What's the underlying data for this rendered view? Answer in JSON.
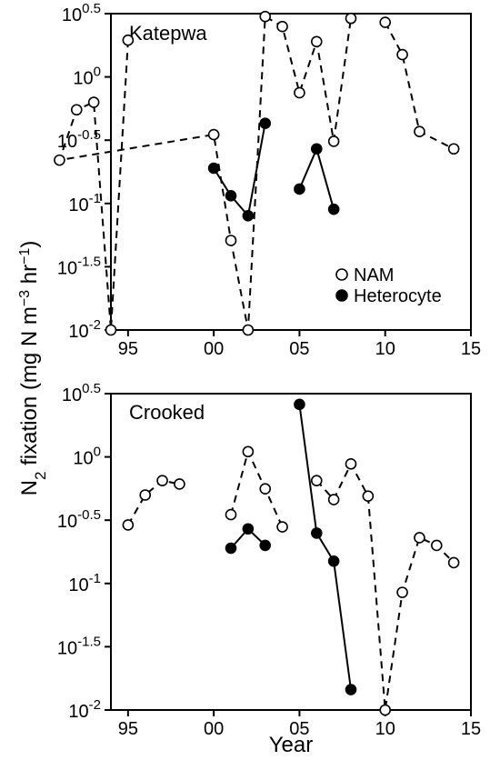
{
  "chart_data": [
    {
      "type": "line",
      "title": "Katepwa",
      "xlabel": "",
      "ylabel": "N2 fixation (mg N m-3 hr-1)",
      "y_scale": "log",
      "ylim": [
        0.01,
        3.1623
      ],
      "xlim": [
        1994,
        2015
      ],
      "x_tick_labels": [
        "95",
        "00",
        "05",
        "10",
        "15"
      ],
      "x_tick_values": [
        1995,
        2000,
        2005,
        2010,
        2015
      ],
      "y_tick_labels": [
        {
          "base": "10",
          "exp": "-2"
        },
        {
          "base": "10",
          "exp": "-1.5"
        },
        {
          "base": "10",
          "exp": "-1"
        },
        {
          "base": "10",
          "exp": "-0.5"
        },
        {
          "base": "10",
          "exp": "0"
        },
        {
          "base": "10",
          "exp": "0.5"
        }
      ],
      "y_tick_values": [
        0.01,
        0.03162,
        0.1,
        0.3162,
        1,
        3.1623
      ],
      "legend": {
        "position": "bottom-right",
        "entries": [
          "NAM",
          "Heterocyte"
        ]
      },
      "series": [
        {
          "name": "NAM",
          "marker": "open-circle",
          "line": "dashed",
          "segments": [
            [
              [
                1995,
                1.95
              ],
              [
                1994,
                0.01
              ],
              [
                1993,
                0.63
              ],
              [
                1992,
                0.55
              ],
              [
                1991,
                0.22
              ],
              [
                2000,
                0.35
              ],
              [
                2001,
                0.051
              ],
              [
                2002,
                0.01
              ],
              [
                2003,
                3.0
              ],
              [
                2004,
                2.5
              ],
              [
                2005,
                0.75
              ],
              [
                2006,
                1.9
              ],
              [
                2007,
                0.31
              ],
              [
                2008,
                2.9
              ]
            ],
            [
              [
                2010,
                2.7
              ],
              [
                2011,
                1.5
              ],
              [
                2012,
                0.37
              ],
              [
                2014,
                0.27
              ]
            ]
          ]
        },
        {
          "name": "Heterocyte",
          "marker": "filled-circle",
          "line": "solid",
          "segments": [
            [
              [
                2000,
                0.19
              ],
              [
                2001,
                0.115
              ],
              [
                2002,
                0.08
              ],
              [
                2003,
                0.43
              ]
            ],
            [
              [
                2005,
                0.13
              ],
              [
                2006,
                0.27
              ],
              [
                2007,
                0.09
              ]
            ]
          ]
        }
      ]
    },
    {
      "type": "line",
      "title": "Crooked",
      "xlabel": "Year",
      "ylabel": "N2 fixation (mg N m-3 hr-1)",
      "y_scale": "log",
      "ylim": [
        0.01,
        3.1623
      ],
      "xlim": [
        1994,
        2015
      ],
      "x_tick_labels": [
        "95",
        "00",
        "05",
        "10",
        "15"
      ],
      "x_tick_values": [
        1995,
        2000,
        2005,
        2010,
        2015
      ],
      "y_tick_labels": [
        {
          "base": "10",
          "exp": "-2"
        },
        {
          "base": "10",
          "exp": "-1.5"
        },
        {
          "base": "10",
          "exp": "-1"
        },
        {
          "base": "10",
          "exp": "-0.5"
        },
        {
          "base": "10",
          "exp": "0"
        },
        {
          "base": "10",
          "exp": "0.5"
        }
      ],
      "y_tick_values": [
        0.01,
        0.03162,
        0.1,
        0.3162,
        1,
        3.1623
      ],
      "series": [
        {
          "name": "NAM",
          "marker": "open-circle",
          "line": "dashed",
          "segments": [
            [
              [
                1995,
                0.29
              ],
              [
                1996,
                0.5
              ],
              [
                1997,
                0.65
              ],
              [
                1998,
                0.61
              ]
            ],
            [
              [
                2001,
                0.35
              ],
              [
                2002,
                1.1
              ],
              [
                2003,
                0.56
              ],
              [
                2004,
                0.28
              ]
            ],
            [
              [
                2006,
                0.65
              ],
              [
                2007,
                0.46
              ],
              [
                2008,
                0.88
              ],
              [
                2009,
                0.49
              ],
              [
                2010,
                0.01
              ],
              [
                2011,
                0.085
              ],
              [
                2012,
                0.23
              ],
              [
                2013,
                0.2
              ],
              [
                2014,
                0.146
              ]
            ]
          ]
        },
        {
          "name": "Heterocyte",
          "marker": "filled-circle",
          "line": "solid",
          "segments": [
            [
              [
                2001,
                0.19
              ],
              [
                2002,
                0.27
              ],
              [
                2003,
                0.2
              ]
            ],
            [
              [
                2005,
                2.6
              ],
              [
                2006,
                0.25
              ],
              [
                2007,
                0.15
              ],
              [
                2008,
                0.0145
              ]
            ]
          ]
        }
      ]
    }
  ],
  "shared_y_label": {
    "prefix": "N",
    "prefix_sub": "2",
    "mid": " fixation (mg N m",
    "mid_sup": "−3",
    "mid2": " hr",
    "end_sup": "−1",
    "end": ")"
  },
  "panel_titles": [
    "Katepwa",
    "Crooked"
  ],
  "legend_labels": [
    "NAM",
    "Heterocyte"
  ],
  "x_axis_title": "Year"
}
